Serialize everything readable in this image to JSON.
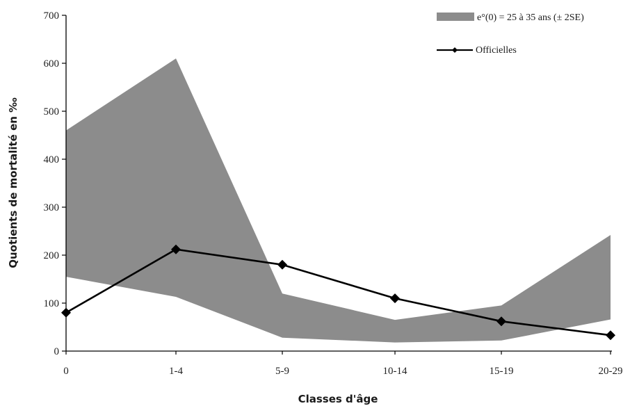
{
  "chart_data": {
    "type": "line",
    "categories": [
      "0",
      "1-4",
      "5-9",
      "10-14",
      "15-19",
      "20-29"
    ],
    "band": {
      "name": "e°(0) = 25 à 35 ans (± 2SE)",
      "upper": [
        460,
        610,
        120,
        65,
        95,
        242
      ],
      "lower": [
        155,
        113,
        28,
        18,
        22,
        66
      ],
      "color": "#8c8c8c"
    },
    "series": [
      {
        "name": "Officielles",
        "values": [
          80,
          212,
          180,
          110,
          62,
          33
        ],
        "color": "#000000"
      }
    ],
    "xlabel": "Classes d'âge",
    "ylabel": "Quotients de mortalité en ‰",
    "ylim": [
      0,
      700
    ],
    "yticks": [
      0,
      100,
      200,
      300,
      400,
      500,
      600,
      700
    ],
    "grid": false,
    "legend_position": "top-right"
  }
}
